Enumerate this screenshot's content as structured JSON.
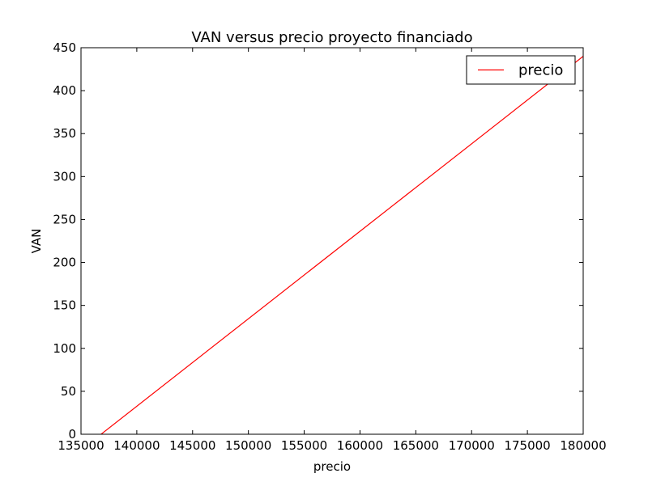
{
  "chart_data": {
    "type": "line",
    "title": "VAN versus precio proyecto financiado",
    "xlabel": "precio",
    "ylabel": "VAN",
    "xlim": [
      135000,
      180000
    ],
    "ylim": [
      0,
      450
    ],
    "xticks": [
      135000,
      140000,
      145000,
      150000,
      155000,
      160000,
      165000,
      170000,
      175000,
      180000
    ],
    "yticks": [
      0,
      50,
      100,
      150,
      200,
      250,
      300,
      350,
      400,
      450
    ],
    "grid": false,
    "legend_position": "top-right",
    "series": [
      {
        "name": "precio",
        "color": "#ff0000",
        "x": [
          136800,
          180000
        ],
        "y": [
          0,
          440
        ]
      }
    ]
  }
}
